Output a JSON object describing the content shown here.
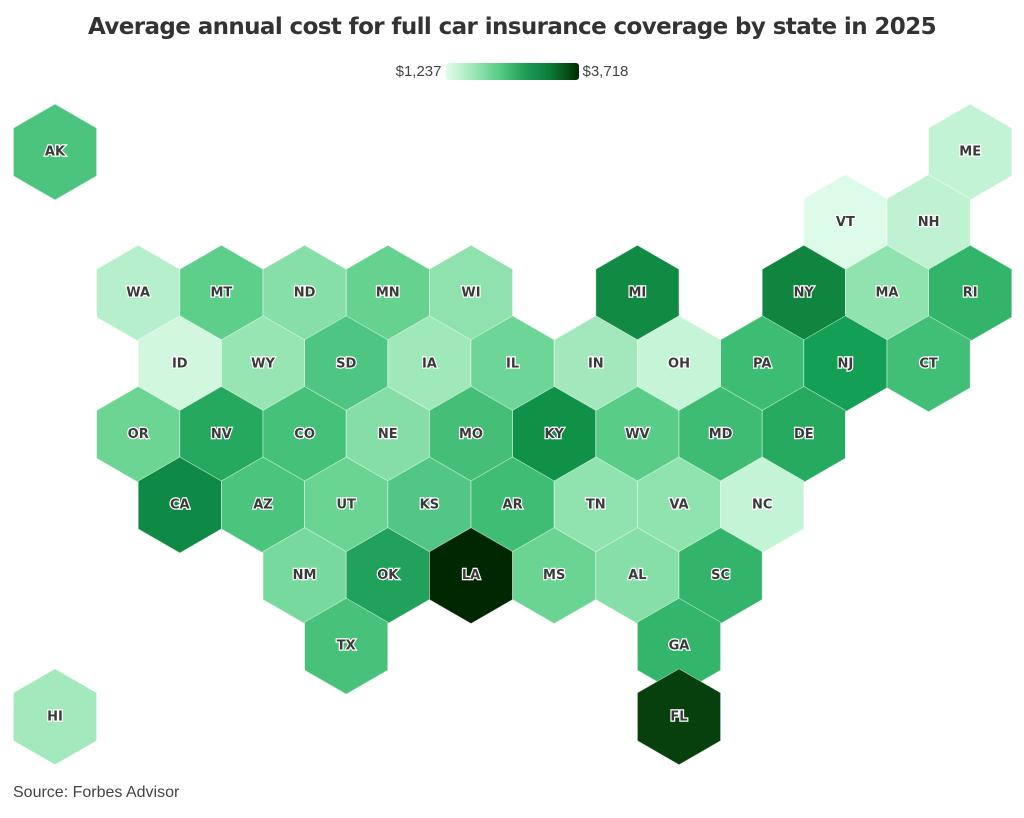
{
  "chart_data": {
    "type": "heatmap",
    "subtype": "hex-tile-map",
    "title": "Average annual cost for full car insurance coverage by state in 2025",
    "legend": {
      "min_label": "$1,237",
      "max_label": "$3,718",
      "min": 1237,
      "max": 3718,
      "placement": "top-center"
    },
    "source": "Source: Forbes Advisor",
    "units": "USD per year (values estimated from color)",
    "states": [
      {
        "code": "AK",
        "value": 2100,
        "color": "#4cc47e"
      },
      {
        "code": "ME",
        "value": 1450,
        "color": "#c3f3d5"
      },
      {
        "code": "VT",
        "value": 1280,
        "color": "#dcfbe8"
      },
      {
        "code": "NH",
        "value": 1480,
        "color": "#bff2d2"
      },
      {
        "code": "WA",
        "value": 1550,
        "color": "#b5efcb"
      },
      {
        "code": "MT",
        "value": 1950,
        "color": "#5dcf8a"
      },
      {
        "code": "ND",
        "value": 1750,
        "color": "#86dfa6"
      },
      {
        "code": "MN",
        "value": 1900,
        "color": "#66d290"
      },
      {
        "code": "WI",
        "value": 1700,
        "color": "#8fe2ad"
      },
      {
        "code": "MI",
        "value": 2960,
        "color": "#118a44"
      },
      {
        "code": "NY",
        "value": 3000,
        "color": "#0f8540"
      },
      {
        "code": "MA",
        "value": 1700,
        "color": "#90e3ae"
      },
      {
        "code": "RI",
        "value": 2350,
        "color": "#32b46b"
      },
      {
        "code": "ID",
        "value": 1350,
        "color": "#d2f7df"
      },
      {
        "code": "WY",
        "value": 1650,
        "color": "#98e5b4"
      },
      {
        "code": "SD",
        "value": 2100,
        "color": "#4ec580"
      },
      {
        "code": "IA",
        "value": 1620,
        "color": "#9fe8b9"
      },
      {
        "code": "IL",
        "value": 1880,
        "color": "#6dd595"
      },
      {
        "code": "IN",
        "value": 1600,
        "color": "#a3e8bc"
      },
      {
        "code": "OH",
        "value": 1440,
        "color": "#c6f4d7"
      },
      {
        "code": "PA",
        "value": 2250,
        "color": "#3dbc73"
      },
      {
        "code": "NJ",
        "value": 2700,
        "color": "#13a055"
      },
      {
        "code": "CT",
        "value": 2200,
        "color": "#42bf77"
      },
      {
        "code": "OR",
        "value": 1880,
        "color": "#6cd594"
      },
      {
        "code": "NV",
        "value": 2550,
        "color": "#24a95e"
      },
      {
        "code": "CO",
        "value": 2170,
        "color": "#46c17a"
      },
      {
        "code": "NE",
        "value": 1760,
        "color": "#85dea5"
      },
      {
        "code": "MO",
        "value": 2180,
        "color": "#45bf78"
      },
      {
        "code": "KY",
        "value": 2850,
        "color": "#0f9148"
      },
      {
        "code": "WV",
        "value": 1980,
        "color": "#59cd88"
      },
      {
        "code": "MD",
        "value": 2240,
        "color": "#3fbc74"
      },
      {
        "code": "DE",
        "value": 2530,
        "color": "#25aa60"
      },
      {
        "code": "CA",
        "value": 2930,
        "color": "#0e8a44"
      },
      {
        "code": "AZ",
        "value": 2120,
        "color": "#4bc47d"
      },
      {
        "code": "UT",
        "value": 1890,
        "color": "#6ad492"
      },
      {
        "code": "KS",
        "value": 2060,
        "color": "#51c783"
      },
      {
        "code": "AR",
        "value": 2240,
        "color": "#3fbd74"
      },
      {
        "code": "TN",
        "value": 1700,
        "color": "#90e3ae"
      },
      {
        "code": "VA",
        "value": 1700,
        "color": "#8fe3ad"
      },
      {
        "code": "NC",
        "value": 1440,
        "color": "#c4f4d6"
      },
      {
        "code": "NM",
        "value": 1820,
        "color": "#77d99c"
      },
      {
        "code": "OK",
        "value": 2620,
        "color": "#20a25b"
      },
      {
        "code": "LA",
        "value": 3718,
        "color": "#002800"
      },
      {
        "code": "MS",
        "value": 1890,
        "color": "#6ad492"
      },
      {
        "code": "AL",
        "value": 1750,
        "color": "#86dfa6"
      },
      {
        "code": "SC",
        "value": 2360,
        "color": "#32b46b"
      },
      {
        "code": "TX",
        "value": 2160,
        "color": "#48c27b"
      },
      {
        "code": "GA",
        "value": 2340,
        "color": "#33b56c"
      },
      {
        "code": "FL",
        "value": 3550,
        "color": "#07400d"
      },
      {
        "code": "HI",
        "value": 1600,
        "color": "#a3e9bd"
      }
    ]
  }
}
